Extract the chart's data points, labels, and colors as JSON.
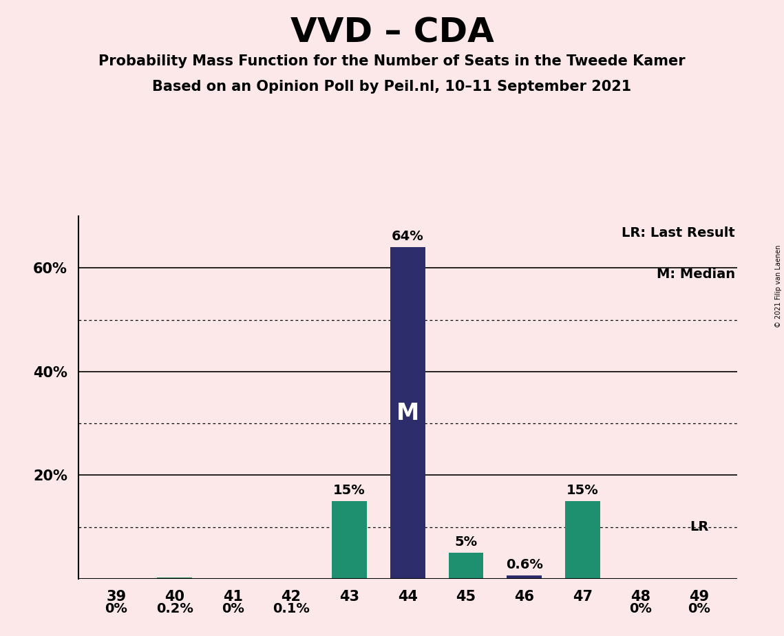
{
  "title": "VVD – CDA",
  "subtitle1": "Probability Mass Function for the Number of Seats in the Tweede Kamer",
  "subtitle2": "Based on an Opinion Poll by Peil.nl, 10–11 September 2021",
  "copyright_text": "© 2021 Filip van Laenen",
  "legend_lr": "LR: Last Result",
  "legend_m": "M: Median",
  "categories": [
    39,
    40,
    41,
    42,
    43,
    44,
    45,
    46,
    47,
    48,
    49
  ],
  "values": [
    0.0,
    0.2,
    0.0,
    0.1,
    15.0,
    64.0,
    5.0,
    0.6,
    15.0,
    0.0,
    0.0
  ],
  "bar_colors": [
    "#2e8b57",
    "#2e8b57",
    "#2e8b57",
    "#2e8b57",
    "#1e9070",
    "#2d2d6b",
    "#1e9070",
    "#2d2d6b",
    "#1e9070",
    "#2e8b57",
    "#2e8b57"
  ],
  "median_bar_index": 5,
  "lr_bar_index": 10,
  "labels": [
    "0%",
    "0.2%",
    "0%",
    "0.1%",
    "15%",
    "64%",
    "5%",
    "0.6%",
    "15%",
    "0%",
    "0%"
  ],
  "background_color": "#fce8e8",
  "ylim": [
    0,
    70
  ],
  "yticks": [
    20,
    40,
    60
  ],
  "ytick_labels": [
    "20%",
    "40%",
    "60%"
  ],
  "solid_gridlines": [
    20,
    40,
    60
  ],
  "dotted_gridlines": [
    10,
    30,
    50
  ],
  "title_fontsize": 36,
  "subtitle_fontsize": 15,
  "bar_width": 0.6,
  "label_fontsize": 14,
  "tick_fontsize": 15
}
